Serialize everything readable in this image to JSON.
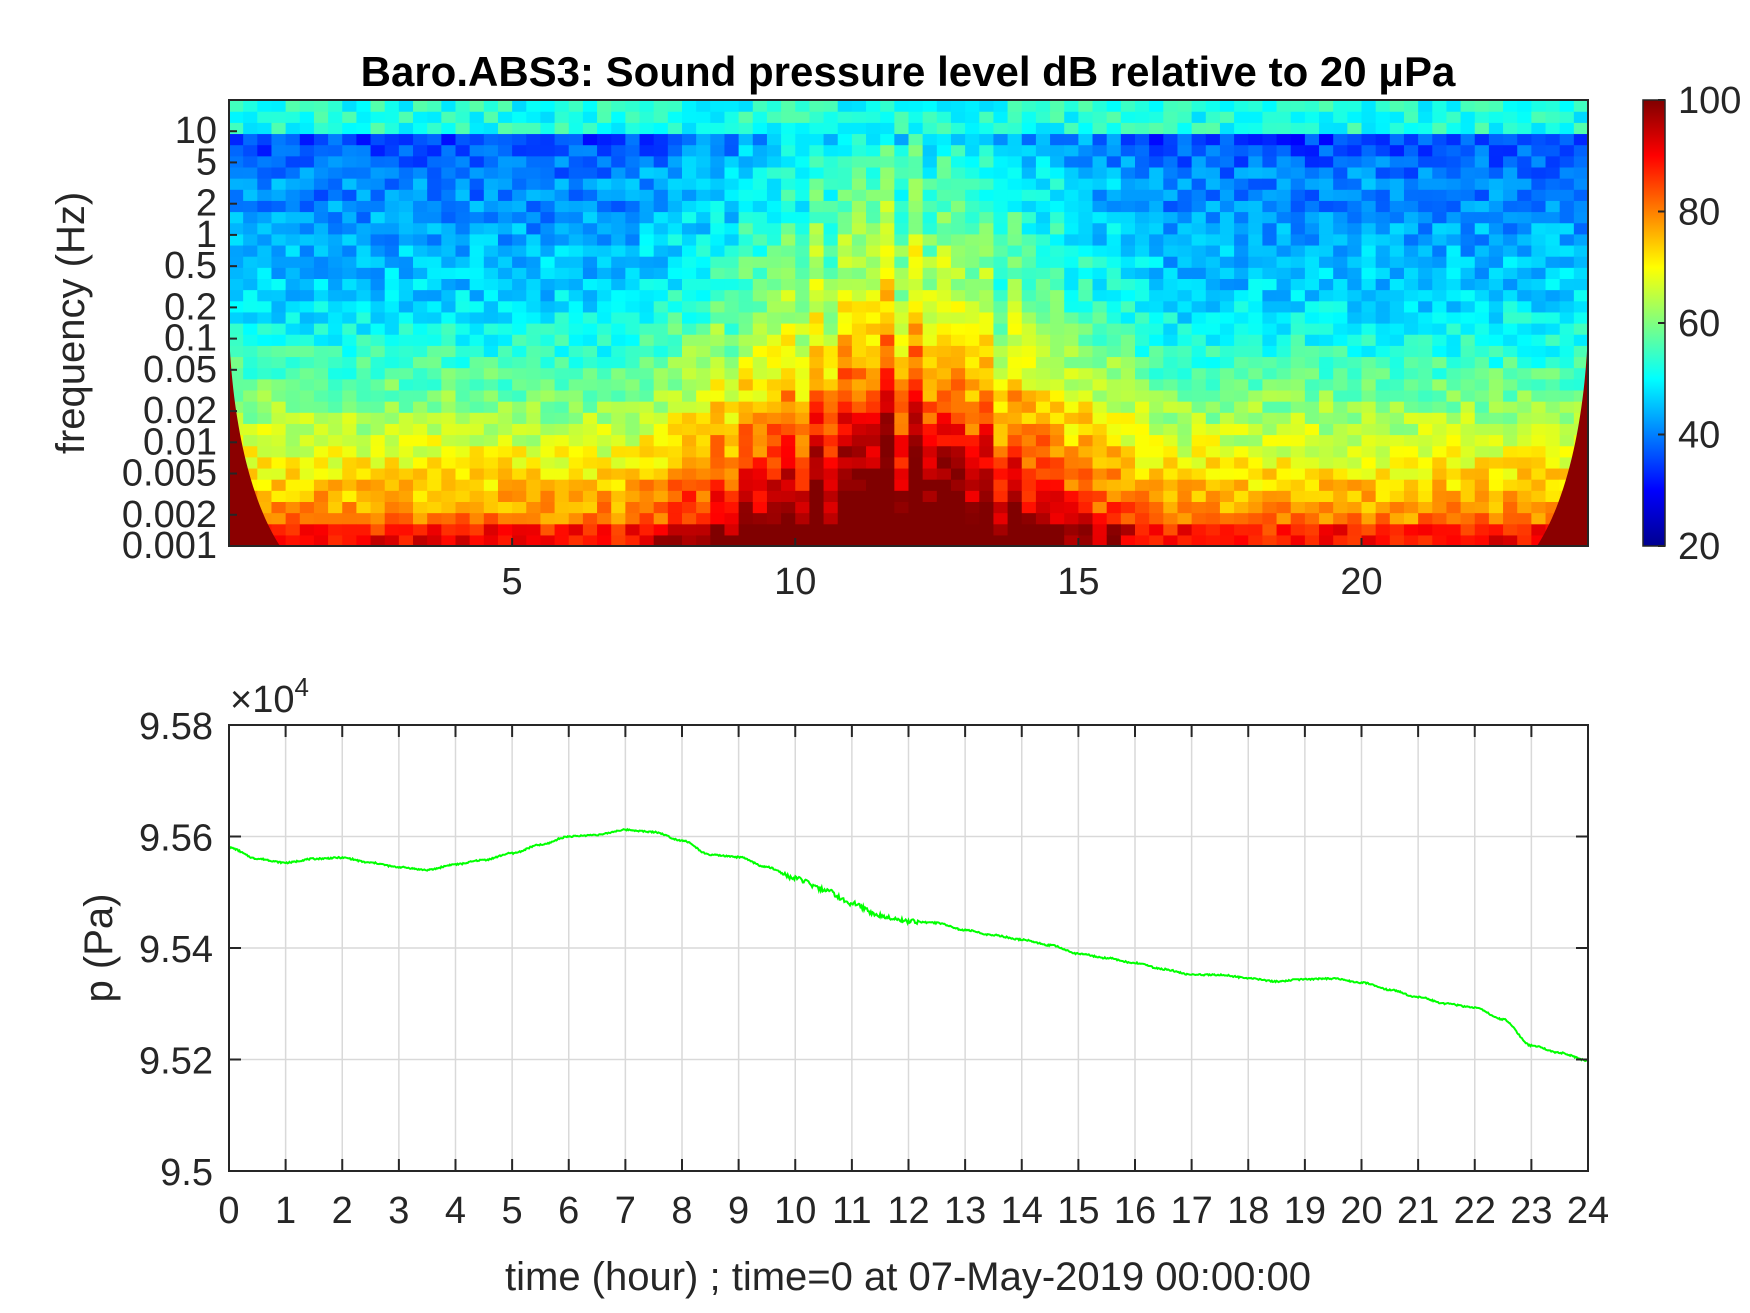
{
  "chart_data": [
    {
      "type": "heatmap",
      "title": "Baro.ABS3: Sound pressure level dB relative to 20 μPa",
      "xlabel": "",
      "ylabel": "frequency (Hz)",
      "xlim": [
        0,
        24
      ],
      "xticks": [
        5,
        10,
        15,
        20
      ],
      "xtick_labels": [
        "5",
        "10",
        "15",
        "20"
      ],
      "ylim": [
        0.001,
        20
      ],
      "yscale": "log",
      "yticks": [
        0.001,
        0.002,
        0.005,
        0.01,
        0.02,
        0.05,
        0.1,
        0.2,
        0.5,
        1,
        2,
        5,
        10
      ],
      "ytick_labels": [
        "0.001",
        "0.002",
        "0.005",
        "0.01",
        "0.02",
        "0.05",
        "0.1",
        "0.2",
        "0.5",
        "1",
        "2",
        "5",
        "10"
      ],
      "colorbar": {
        "clim": [
          20,
          100
        ],
        "ticks": [
          20,
          40,
          60,
          80,
          100
        ],
        "tick_labels": [
          "20",
          "40",
          "60",
          "80",
          "100"
        ],
        "colormap": "jet"
      },
      "colormap_stops": [
        "#00008f",
        "#0000ff",
        "#00ffff",
        "#ffff00",
        "#ff0000",
        "#800000"
      ],
      "activity_window_hours": [
        7,
        16.5
      ],
      "peak_level_db": 100
    },
    {
      "type": "line",
      "title": "",
      "xlabel": "time (hour) ; time=0 at 07-May-2019 00:00:00",
      "ylabel": "p (Pa)",
      "xlim": [
        0,
        24
      ],
      "ylim": [
        95000,
        95800
      ],
      "xticks": [
        0,
        1,
        2,
        3,
        4,
        5,
        6,
        7,
        8,
        9,
        10,
        11,
        12,
        13,
        14,
        15,
        16,
        17,
        18,
        19,
        20,
        21,
        22,
        23,
        24
      ],
      "xtick_labels": [
        "0",
        "1",
        "2",
        "3",
        "4",
        "5",
        "6",
        "7",
        "8",
        "9",
        "10",
        "11",
        "12",
        "13",
        "14",
        "15",
        "16",
        "17",
        "18",
        "19",
        "20",
        "21",
        "22",
        "23",
        "24"
      ],
      "yticks": [
        95000,
        95200,
        95400,
        95600,
        95800
      ],
      "ytick_labels": [
        "9.5",
        "9.52",
        "9.54",
        "9.56",
        "9.58"
      ],
      "exponent_label": "×10",
      "exponent_power": "4",
      "grid": true,
      "series": [
        {
          "color": "#00ff00",
          "x": [
            0,
            0.5,
            1,
            1.5,
            2,
            2.5,
            3,
            3.5,
            4,
            4.5,
            5,
            5.5,
            6,
            6.5,
            7,
            7.5,
            8,
            8.5,
            9,
            9.5,
            10,
            10.5,
            11,
            11.5,
            12,
            12.5,
            13,
            13.5,
            14,
            14.5,
            15,
            15.5,
            16,
            16.5,
            17,
            17.5,
            18,
            18.5,
            19,
            19.5,
            20,
            20.5,
            21,
            21.5,
            22,
            22.5,
            23,
            23.5,
            24
          ],
          "y": [
            95580,
            95560,
            95553,
            95560,
            95562,
            95553,
            95545,
            95540,
            95550,
            95558,
            95570,
            95585,
            95600,
            95603,
            95612,
            95608,
            95593,
            95567,
            95563,
            95545,
            95525,
            95505,
            95480,
            95458,
            95448,
            95445,
            95432,
            95423,
            95415,
            95405,
            95390,
            95382,
            95373,
            95362,
            95352,
            95352,
            95346,
            95340,
            95344,
            95345,
            95338,
            95325,
            95312,
            95300,
            95293,
            95272,
            95225,
            95212,
            95198
          ]
        }
      ]
    }
  ]
}
